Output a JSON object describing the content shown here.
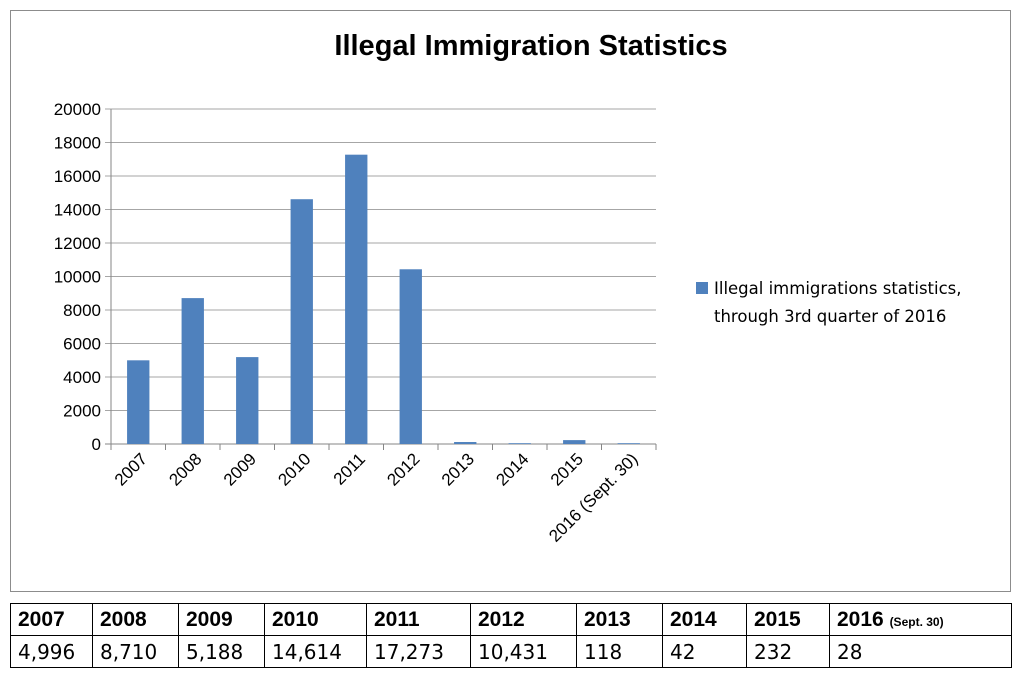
{
  "chart_data": {
    "type": "bar",
    "title": "Illegal Immigration Statistics",
    "categories": [
      "2007",
      "2008",
      "2009",
      "2010",
      "2011",
      "2012",
      "2013",
      "2014",
      "2015",
      "2016 (Sept. 30)"
    ],
    "series": [
      {
        "name": "Illegal immigrations statistics, through 3rd quarter of 2016",
        "values": [
          4996,
          8710,
          5188,
          14614,
          17273,
          10431,
          118,
          42,
          232,
          28
        ],
        "color": "#4f81bd"
      }
    ],
    "ylim": [
      0,
      20000
    ],
    "yticks": [
      "0",
      "2000",
      "4000",
      "6000",
      "8000",
      "10000",
      "12000",
      "14000",
      "16000",
      "18000",
      "20000"
    ],
    "grid": true,
    "legend_position": "right",
    "legend_lines": [
      "Illegal immigrations statistics,",
      "through 3rd quarter of 2016"
    ]
  },
  "table": {
    "headers": [
      {
        "main": "2007",
        "note": ""
      },
      {
        "main": "2008",
        "note": ""
      },
      {
        "main": "2009",
        "note": ""
      },
      {
        "main": "2010",
        "note": ""
      },
      {
        "main": "2011",
        "note": ""
      },
      {
        "main": "2012",
        "note": ""
      },
      {
        "main": "2013",
        "note": ""
      },
      {
        "main": "2014",
        "note": ""
      },
      {
        "main": "2015",
        "note": ""
      },
      {
        "main": "2016",
        "note": "(Sept. 30)"
      }
    ],
    "values": [
      "4,996",
      "8,710",
      "5,188",
      "14,614",
      "17,273",
      "10,431",
      "118",
      "42",
      "232",
      "28"
    ]
  }
}
